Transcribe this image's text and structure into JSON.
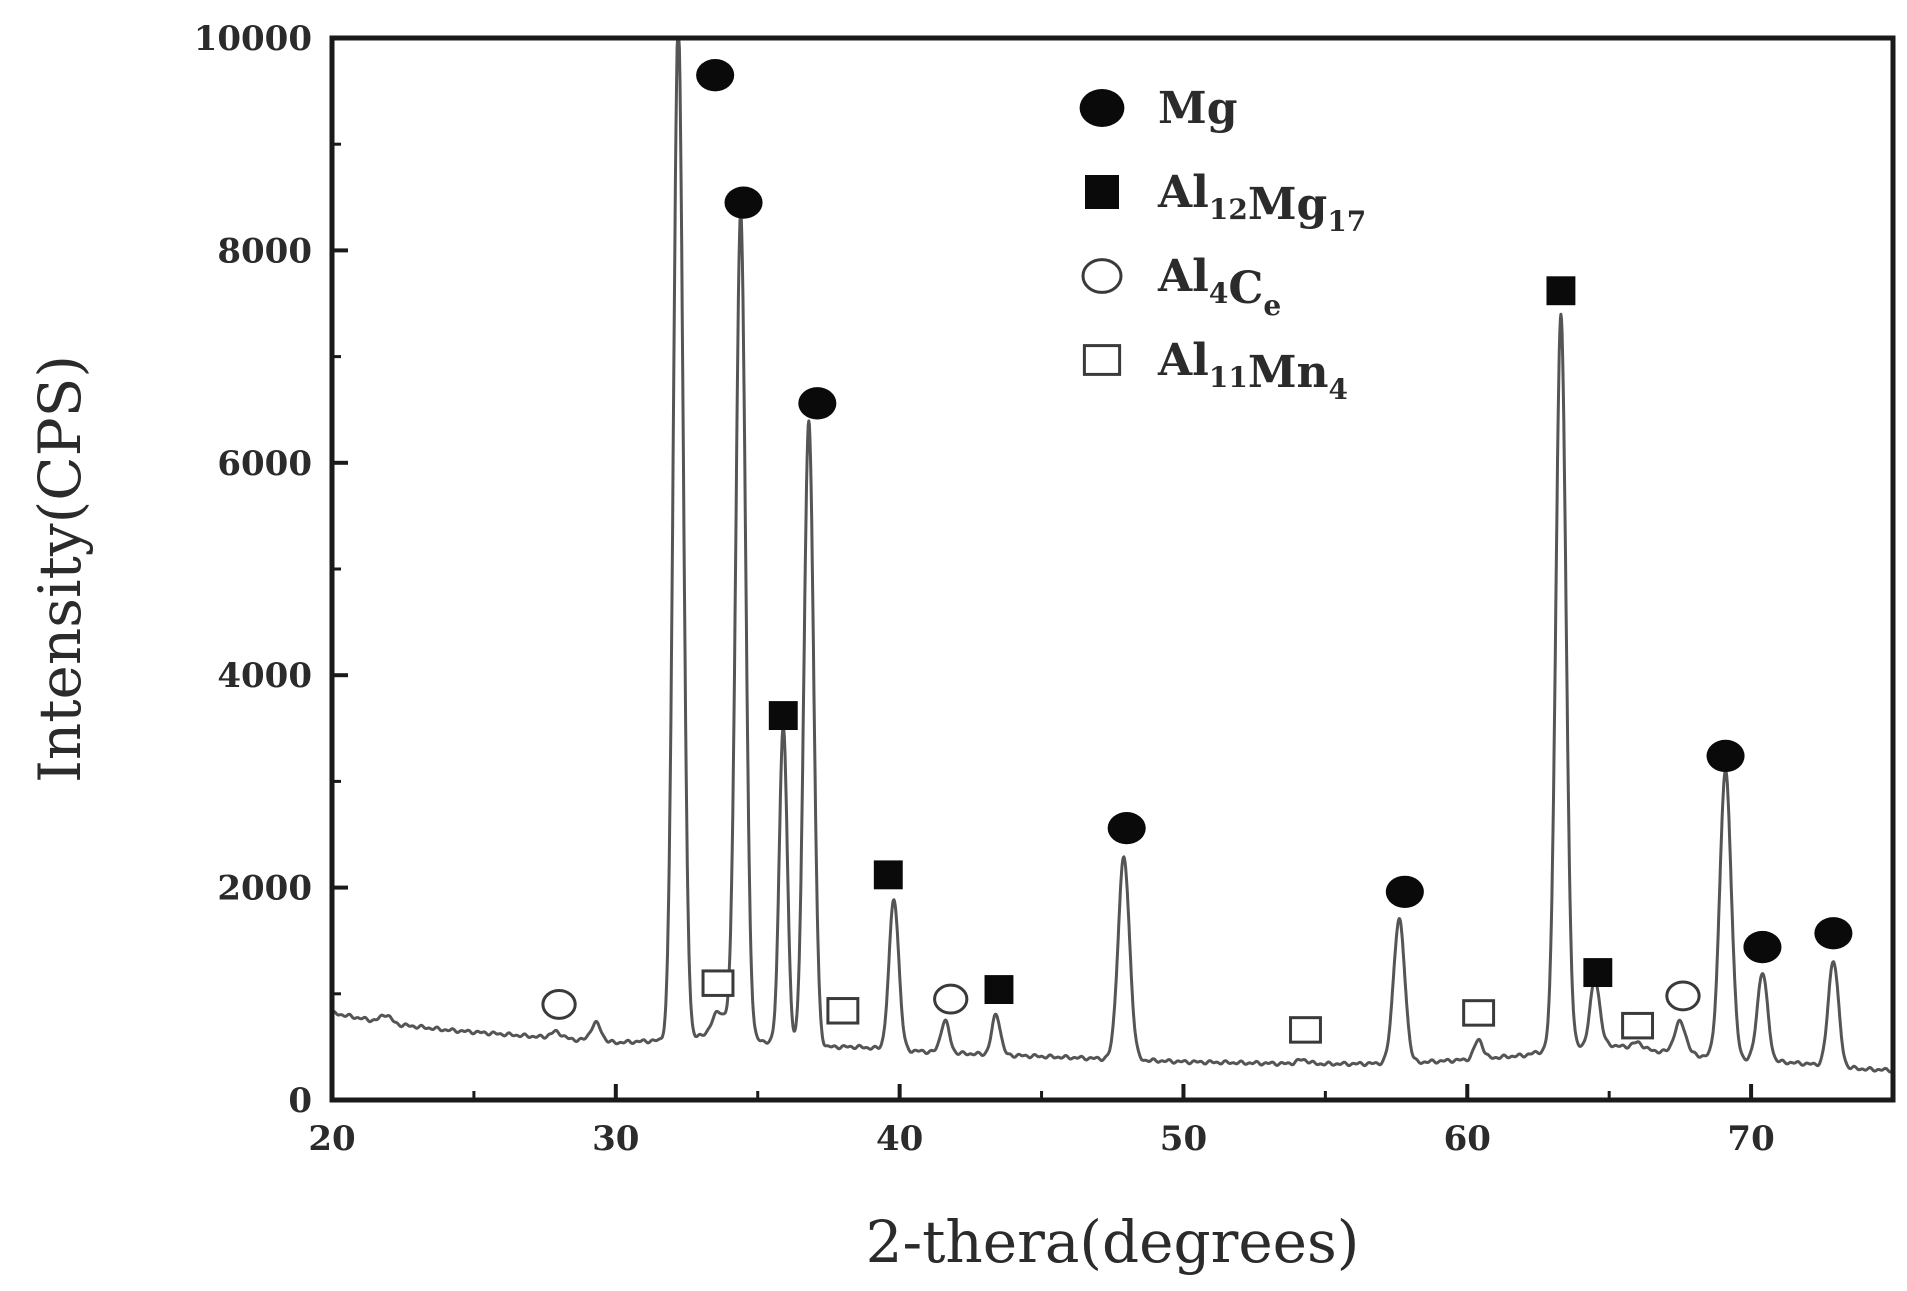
{
  "chart_data": {
    "type": "line",
    "xlabel": "2-thera(degrees)",
    "ylabel": "Intensity(CPS)",
    "xlim": [
      20,
      75
    ],
    "ylim": [
      0,
      10000
    ],
    "x_ticks": [
      20,
      30,
      40,
      50,
      60,
      70
    ],
    "y_ticks": [
      0,
      2000,
      4000,
      6000,
      8000,
      10000
    ],
    "grid": false,
    "legend_position": "top-right",
    "line_color": "#555555",
    "background": [
      [
        20,
        820
      ],
      [
        22,
        720
      ],
      [
        24,
        660
      ],
      [
        26,
        620
      ],
      [
        28,
        580
      ],
      [
        30,
        540
      ],
      [
        31.5,
        560
      ],
      [
        33,
        600
      ],
      [
        34,
        720
      ],
      [
        35,
        560
      ],
      [
        37,
        500
      ],
      [
        38.5,
        500
      ],
      [
        40,
        470
      ],
      [
        42,
        440
      ],
      [
        44,
        420
      ],
      [
        46,
        400
      ],
      [
        48,
        380
      ],
      [
        50,
        360
      ],
      [
        52,
        350
      ],
      [
        54,
        340
      ],
      [
        56,
        340
      ],
      [
        58,
        350
      ],
      [
        60,
        380
      ],
      [
        62,
        420
      ],
      [
        63,
        480
      ],
      [
        65,
        520
      ],
      [
        66,
        480
      ],
      [
        68,
        420
      ],
      [
        70,
        380
      ],
      [
        72,
        340
      ],
      [
        74,
        290
      ],
      [
        75,
        280
      ]
    ],
    "peaks": [
      {
        "x": 21.9,
        "height": 80,
        "width": 0.18
      },
      {
        "x": 27.9,
        "height": 60,
        "width": 0.2
      },
      {
        "x": 29.3,
        "height": 170,
        "width": 0.18
      },
      {
        "x": 32.2,
        "height": 9600,
        "width": 0.17
      },
      {
        "x": 33.6,
        "height": 160,
        "width": 0.2
      },
      {
        "x": 34.4,
        "height": 7700,
        "width": 0.17
      },
      {
        "x": 35.9,
        "height": 3000,
        "width": 0.14
      },
      {
        "x": 36.8,
        "height": 5900,
        "width": 0.17
      },
      {
        "x": 39.8,
        "height": 1420,
        "width": 0.17
      },
      {
        "x": 41.6,
        "height": 300,
        "width": 0.15
      },
      {
        "x": 43.4,
        "height": 380,
        "width": 0.15
      },
      {
        "x": 47.9,
        "height": 1900,
        "width": 0.2
      },
      {
        "x": 54.2,
        "height": 40,
        "width": 0.2
      },
      {
        "x": 57.6,
        "height": 1350,
        "width": 0.2
      },
      {
        "x": 60.4,
        "height": 180,
        "width": 0.15
      },
      {
        "x": 63.3,
        "height": 6900,
        "width": 0.18
      },
      {
        "x": 64.5,
        "height": 620,
        "width": 0.17
      },
      {
        "x": 66.0,
        "height": 60,
        "width": 0.2
      },
      {
        "x": 67.5,
        "height": 300,
        "width": 0.2
      },
      {
        "x": 69.1,
        "height": 2700,
        "width": 0.2
      },
      {
        "x": 70.4,
        "height": 830,
        "width": 0.18
      },
      {
        "x": 72.9,
        "height": 1000,
        "width": 0.18
      }
    ],
    "phase_markers": [
      {
        "phase": "Mg",
        "symbol": "filled-circle",
        "x": 33.5,
        "y": 9650
      },
      {
        "phase": "Mg",
        "symbol": "filled-circle",
        "x": 34.5,
        "y": 8450
      },
      {
        "phase": "Mg",
        "symbol": "filled-circle",
        "x": 37.1,
        "y": 6560
      },
      {
        "phase": "Mg",
        "symbol": "filled-circle",
        "x": 48.0,
        "y": 2560
      },
      {
        "phase": "Mg",
        "symbol": "filled-circle",
        "x": 57.8,
        "y": 1960
      },
      {
        "phase": "Mg",
        "symbol": "filled-circle",
        "x": 69.1,
        "y": 3240
      },
      {
        "phase": "Mg",
        "symbol": "filled-circle",
        "x": 70.4,
        "y": 1440
      },
      {
        "phase": "Mg",
        "symbol": "filled-circle",
        "x": 72.9,
        "y": 1570
      },
      {
        "phase": "Al12Mg17",
        "symbol": "filled-square",
        "x": 35.9,
        "y": 3620
      },
      {
        "phase": "Al12Mg17",
        "symbol": "filled-square",
        "x": 39.6,
        "y": 2120
      },
      {
        "phase": "Al12Mg17",
        "symbol": "filled-square",
        "x": 43.5,
        "y": 1040
      },
      {
        "phase": "Al12Mg17",
        "symbol": "filled-square",
        "x": 63.3,
        "y": 7620
      },
      {
        "phase": "Al12Mg17",
        "symbol": "filled-square",
        "x": 64.6,
        "y": 1200
      },
      {
        "phase": "Al4Ce",
        "symbol": "open-circle",
        "x": 28.0,
        "y": 900
      },
      {
        "phase": "Al4Ce",
        "symbol": "open-circle",
        "x": 41.8,
        "y": 950
      },
      {
        "phase": "Al4Ce",
        "symbol": "open-circle",
        "x": 67.6,
        "y": 980
      },
      {
        "phase": "Al11Mn4",
        "symbol": "open-square",
        "x": 33.6,
        "y": 1100
      },
      {
        "phase": "Al11Mn4",
        "symbol": "open-square",
        "x": 38.0,
        "y": 840
      },
      {
        "phase": "Al11Mn4",
        "symbol": "open-square",
        "x": 54.3,
        "y": 660
      },
      {
        "phase": "Al11Mn4",
        "symbol": "open-square",
        "x": 60.4,
        "y": 820
      },
      {
        "phase": "Al11Mn4",
        "symbol": "open-square",
        "x": 66.0,
        "y": 700
      }
    ],
    "legend": [
      {
        "symbol": "filled-circle",
        "label": "Mg",
        "parts": [
          {
            "t": "Mg"
          }
        ]
      },
      {
        "symbol": "filled-square",
        "label": "Al12Mg17",
        "parts": [
          {
            "t": "Al"
          },
          {
            "t": "12",
            "sub": true
          },
          {
            "t": "Mg"
          },
          {
            "t": "17",
            "sub": true
          }
        ]
      },
      {
        "symbol": "open-circle",
        "label": "Al4Ce",
        "parts": [
          {
            "t": "Al"
          },
          {
            "t": "4",
            "sub": true
          },
          {
            "t": "C"
          },
          {
            "t": "e",
            "sub": true
          }
        ]
      },
      {
        "symbol": "open-square",
        "label": "Al11Mn4",
        "parts": [
          {
            "t": "Al"
          },
          {
            "t": "11",
            "sub": true
          },
          {
            "t": "Mn"
          },
          {
            "t": "4",
            "sub": true
          }
        ]
      }
    ]
  }
}
